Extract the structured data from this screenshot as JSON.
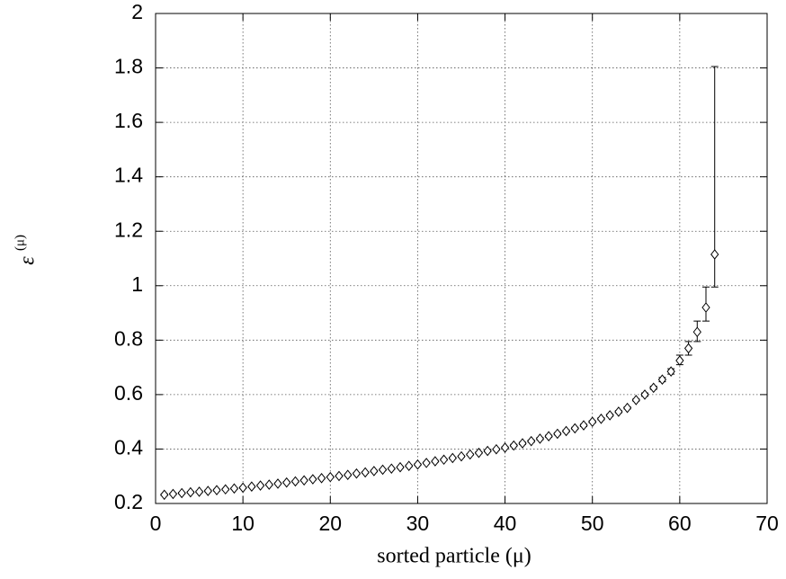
{
  "chart_data": {
    "type": "scatter",
    "xlabel": "sorted particle (μ)",
    "ylabel": "ε",
    "ylabel_sup": "(μ)",
    "xlim": [
      0,
      70
    ],
    "xticks": [
      0,
      10,
      20,
      30,
      40,
      50,
      60,
      70
    ],
    "ylim": [
      0.2,
      2
    ],
    "yticks": [
      0.2,
      0.4,
      0.6,
      0.8,
      1,
      1.2,
      1.4,
      1.6,
      1.8,
      2
    ],
    "grid": true,
    "color": "#000000",
    "x": [
      1,
      2,
      3,
      4,
      5,
      6,
      7,
      8,
      9,
      10,
      11,
      12,
      13,
      14,
      15,
      16,
      17,
      18,
      19,
      20,
      21,
      22,
      23,
      24,
      25,
      26,
      27,
      28,
      29,
      30,
      31,
      32,
      33,
      34,
      35,
      36,
      37,
      38,
      39,
      40,
      41,
      42,
      43,
      44,
      45,
      46,
      47,
      48,
      49,
      50,
      51,
      52,
      53,
      54,
      55,
      56,
      57,
      58,
      59,
      60,
      61,
      62,
      63,
      64
    ],
    "values": [
      0.232,
      0.235,
      0.238,
      0.241,
      0.243,
      0.246,
      0.249,
      0.252,
      0.255,
      0.258,
      0.262,
      0.266,
      0.269,
      0.273,
      0.277,
      0.281,
      0.285,
      0.289,
      0.293,
      0.297,
      0.301,
      0.305,
      0.31,
      0.314,
      0.319,
      0.324,
      0.328,
      0.333,
      0.338,
      0.343,
      0.349,
      0.355,
      0.361,
      0.367,
      0.373,
      0.38,
      0.386,
      0.393,
      0.399,
      0.405,
      0.413,
      0.421,
      0.429,
      0.438,
      0.447,
      0.456,
      0.466,
      0.476,
      0.487,
      0.5,
      0.511,
      0.524,
      0.537,
      0.551,
      0.58,
      0.6,
      0.625,
      0.655,
      0.685,
      0.725,
      0.77,
      0.83,
      0.92,
      1.115
    ],
    "yerr_minus": [
      0.003,
      0.003,
      0.003,
      0.003,
      0.003,
      0.003,
      0.003,
      0.003,
      0.003,
      0.003,
      0.003,
      0.003,
      0.003,
      0.003,
      0.003,
      0.003,
      0.003,
      0.003,
      0.003,
      0.003,
      0.003,
      0.003,
      0.003,
      0.003,
      0.003,
      0.003,
      0.003,
      0.003,
      0.003,
      0.003,
      0.003,
      0.003,
      0.003,
      0.003,
      0.003,
      0.003,
      0.003,
      0.003,
      0.003,
      0.003,
      0.004,
      0.004,
      0.004,
      0.004,
      0.004,
      0.004,
      0.004,
      0.004,
      0.004,
      0.004,
      0.004,
      0.004,
      0.004,
      0.004,
      0.004,
      0.006,
      0.006,
      0.008,
      0.01,
      0.015,
      0.025,
      0.035,
      0.05,
      0.12
    ],
    "yerr_plus": [
      0.003,
      0.003,
      0.003,
      0.003,
      0.003,
      0.003,
      0.003,
      0.003,
      0.003,
      0.003,
      0.003,
      0.003,
      0.003,
      0.003,
      0.003,
      0.003,
      0.003,
      0.003,
      0.003,
      0.003,
      0.003,
      0.003,
      0.003,
      0.003,
      0.003,
      0.003,
      0.003,
      0.003,
      0.003,
      0.003,
      0.003,
      0.003,
      0.003,
      0.003,
      0.003,
      0.003,
      0.003,
      0.003,
      0.003,
      0.003,
      0.004,
      0.004,
      0.004,
      0.004,
      0.004,
      0.004,
      0.004,
      0.004,
      0.004,
      0.004,
      0.004,
      0.004,
      0.004,
      0.004,
      0.004,
      0.006,
      0.006,
      0.008,
      0.01,
      0.02,
      0.025,
      0.04,
      0.075,
      0.69
    ]
  }
}
